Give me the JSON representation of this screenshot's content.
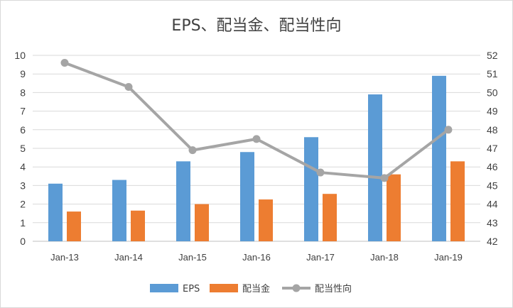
{
  "chart_data": {
    "type": "bar",
    "title": "EPS、配当金、配当性向",
    "categories": [
      "Jan-13",
      "Jan-14",
      "Jan-15",
      "Jan-16",
      "Jan-17",
      "Jan-18",
      "Jan-19"
    ],
    "series": [
      {
        "name": "EPS",
        "type": "bar",
        "axis": "left",
        "color": "#5b9bd5",
        "values": [
          3.1,
          3.3,
          4.3,
          4.8,
          5.6,
          7.9,
          8.9
        ]
      },
      {
        "name": "配当金",
        "type": "bar",
        "axis": "left",
        "color": "#ed7d31",
        "values": [
          1.6,
          1.65,
          2.0,
          2.25,
          2.55,
          3.6,
          4.3
        ]
      },
      {
        "name": "配当性向",
        "type": "line",
        "axis": "right",
        "color": "#a5a5a5",
        "values": [
          51.6,
          50.3,
          46.9,
          47.5,
          45.7,
          45.4,
          48.0
        ]
      }
    ],
    "ylim": [
      0,
      10
    ],
    "y_ticks": [
      "0",
      "1",
      "2",
      "3",
      "4",
      "5",
      "6",
      "7",
      "8",
      "9",
      "10"
    ],
    "y2lim": [
      42,
      52
    ],
    "y2_ticks": [
      "42",
      "43",
      "44",
      "45",
      "46",
      "47",
      "48",
      "49",
      "50",
      "51",
      "52"
    ],
    "grid": true,
    "legend": "bottom"
  }
}
